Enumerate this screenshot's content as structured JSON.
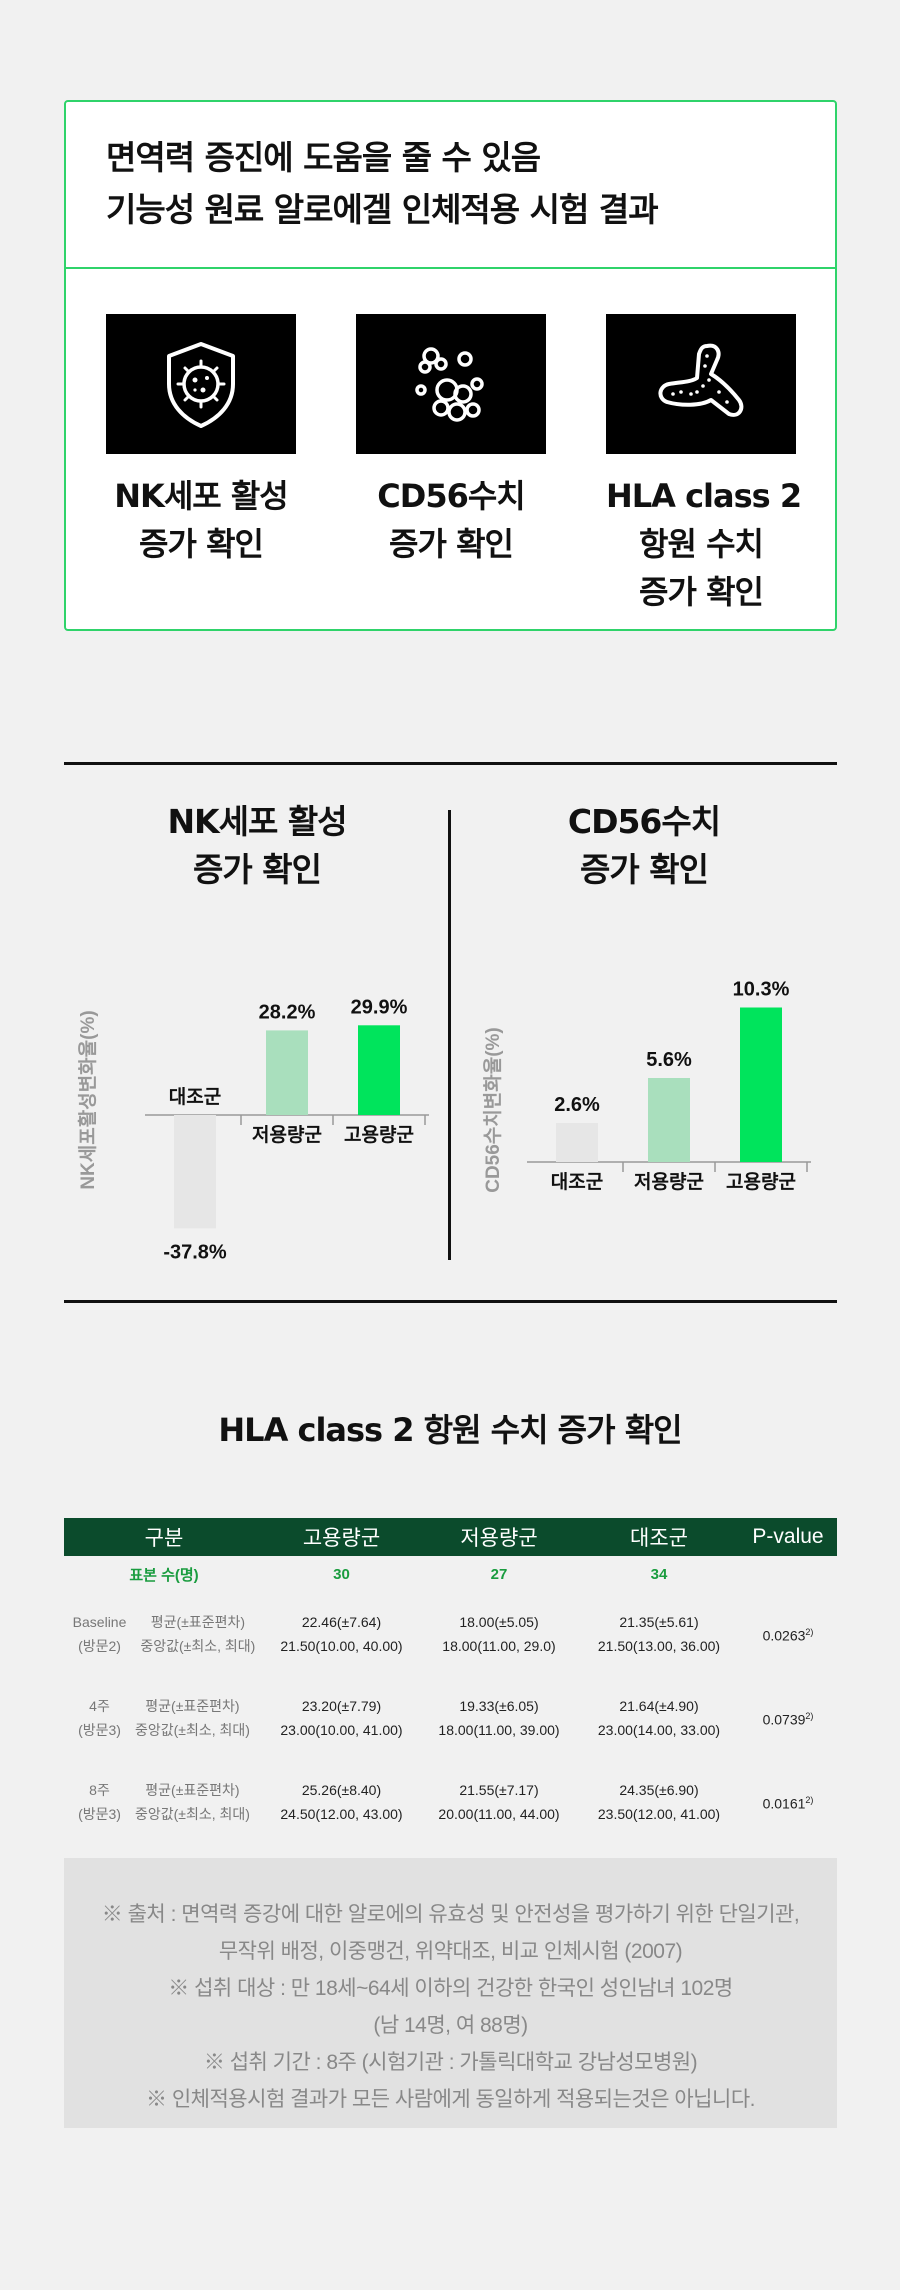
{
  "header": {
    "title_line1": "면역력 증진에 도움을 줄 수 있음",
    "title_line2": "기능성 원료 알로에겔 인체적용 시험 결과"
  },
  "features": [
    {
      "icon": "shield-virus-icon",
      "line1": "NK세포 활성",
      "line2": "증가 확인",
      "line3": ""
    },
    {
      "icon": "cell-cluster-icon",
      "line1": "CD56수치",
      "line2": "증가 확인",
      "line3": ""
    },
    {
      "icon": "dendritic-cell-icon",
      "line1": "HLA class 2",
      "line2": "항원 수치",
      "line3": "증가 확인"
    }
  ],
  "charts": [
    {
      "title_line1": "NK세포 활성",
      "title_line2": "증가 확인",
      "ylabel": "NK세포활성변화율(%)",
      "chart_data": {
        "type": "bar",
        "categories": [
          "대조군",
          "저용량군",
          "고용량군"
        ],
        "values": [
          -37.8,
          28.2,
          29.9
        ],
        "value_labels": [
          "-37.8%",
          "28.2%",
          "29.9%"
        ],
        "colors": [
          "#e6e6e6",
          "#a9dfbd",
          "#00e45c"
        ],
        "ylabel": "NK세포활성변화율(%)"
      }
    },
    {
      "title_line1": "CD56수치",
      "title_line2": "증가 확인",
      "ylabel": "CD56수치변화율(%)",
      "chart_data": {
        "type": "bar",
        "categories": [
          "대조군",
          "저용량군",
          "고용량군"
        ],
        "values": [
          2.6,
          5.6,
          10.3
        ],
        "value_labels": [
          "2.6%",
          "5.6%",
          "10.3%"
        ],
        "colors": [
          "#e6e6e6",
          "#a9dfbd",
          "#00e45c"
        ],
        "ylabel": "CD56수치변화율(%)"
      }
    }
  ],
  "hla_section": {
    "title": "HLA class 2 항원 수치 증가 확인",
    "table": {
      "headers": [
        "구분",
        "고용량군",
        "저용량군",
        "대조군",
        "P-value"
      ],
      "sample_row": {
        "label": "표본 수(명)",
        "high": "30",
        "low": "27",
        "control": "34"
      },
      "rows": [
        {
          "time1": "Baseline",
          "time2": "(방문2)",
          "stat1": "평균(±표준편차)",
          "stat2": "중앙값(±최소, 최대)",
          "high1": "22.46(±7.64)",
          "high2": "21.50(10.00, 40.00)",
          "low1": "18.00(±5.05)",
          "low2": "18.00(11.00, 29.0)",
          "ctrl1": "21.35(±5.61)",
          "ctrl2": "21.50(13.00, 36.00)",
          "p": "0.0263",
          "p_note": "2)"
        },
        {
          "time1": "4주",
          "time2": "(방문3)",
          "stat1": "평균(±표준편차)",
          "stat2": "중앙값(±최소, 최대)",
          "high1": "23.20(±7.79)",
          "high2": "23.00(10.00, 41.00)",
          "low1": "19.33(±6.05)",
          "low2": "18.00(11.00, 39.00)",
          "ctrl1": "21.64(±4.90)",
          "ctrl2": "23.00(14.00, 33.00)",
          "p": "0.0739",
          "p_note": "2)"
        },
        {
          "time1": "8주",
          "time2": "(방문3)",
          "stat1": "평균(±표준편차)",
          "stat2": "중앙값(±최소, 최대)",
          "high1": "25.26(±8.40)",
          "high2": "24.50(12.00, 43.00)",
          "low1": "21.55(±7.17)",
          "low2": "20.00(11.00, 44.00)",
          "ctrl1": "24.35(±6.90)",
          "ctrl2": "23.50(12.00, 41.00)",
          "p": "0.0161",
          "p_note": "2)"
        }
      ]
    }
  },
  "notes": [
    "※ 출처 : 면역력 증강에 대한 알로에의 유효성 및 안전성을 평가하기 위한 단일기관,",
    "무작위 배정, 이중맹건, 위약대조, 비교 인체시험 (2007)",
    "※ 섭취 대상 : 만 18세~64세 이하의 건강한 한국인 성인남녀 102명",
    "(남 14명, 여 88명)",
    "※ 섭취 기간 : 8주 (시험기관 : 가톨릭대학교 강남성모병원)",
    "※ 인체적용시험 결과가 모든 사람에게 동일하게 적용되는것은 아닙니다."
  ]
}
